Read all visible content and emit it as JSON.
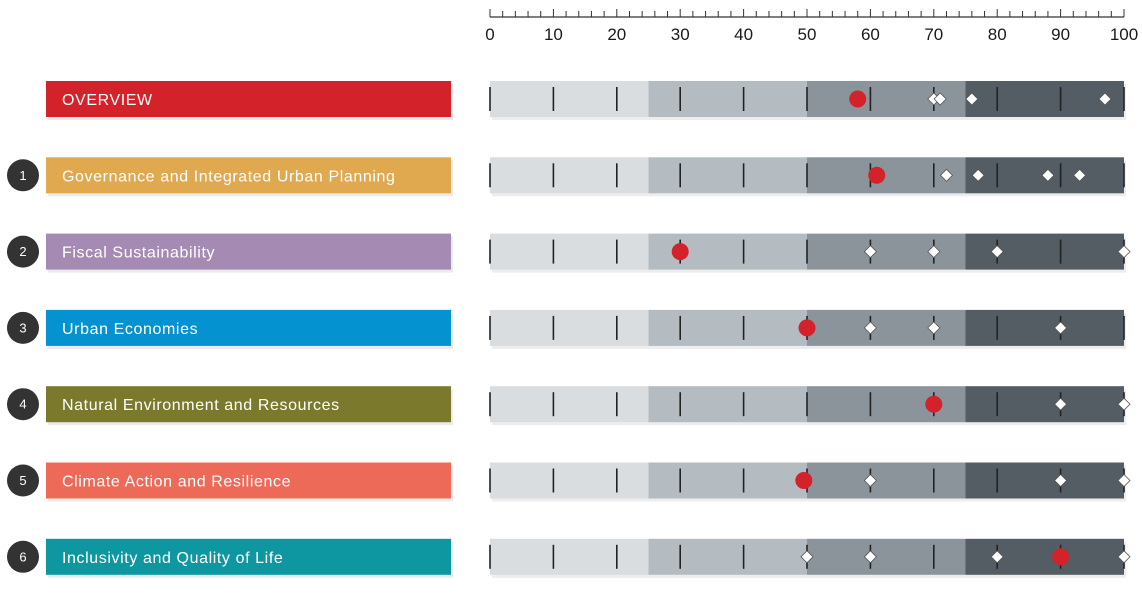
{
  "chart_data": {
    "type": "bullet",
    "xlim": [
      0,
      100
    ],
    "axis_ticks": [
      0,
      10,
      20,
      30,
      40,
      50,
      60,
      70,
      80,
      90,
      100
    ],
    "bands": [
      {
        "from": 0,
        "to": 25,
        "color": "#d9dde0"
      },
      {
        "from": 25,
        "to": 50,
        "color": "#b5bcc1"
      },
      {
        "from": 50,
        "to": 75,
        "color": "#8a949a"
      },
      {
        "from": 75,
        "to": 100,
        "color": "#545d63"
      }
    ],
    "legend": [],
    "rows": [
      {
        "number": "",
        "label": "OVERVIEW",
        "color": "#d3222a",
        "score": 58,
        "benchmarks": [
          70,
          71,
          76,
          97
        ]
      },
      {
        "number": "1",
        "label": "Governance and Integrated Urban Planning",
        "color": "#e0a84f",
        "score": 61,
        "benchmarks": [
          72,
          77,
          88,
          93
        ]
      },
      {
        "number": "2",
        "label": "Fiscal Sustainability",
        "color": "#a58bb3",
        "score": 30,
        "benchmarks": [
          60,
          70,
          80,
          100
        ]
      },
      {
        "number": "3",
        "label": "Urban Economies",
        "color": "#0592d0",
        "score": 50,
        "benchmarks": [
          60,
          70,
          90
        ]
      },
      {
        "number": "4",
        "label": "Natural Environment and Resources",
        "color": "#7b7a2c",
        "score": 70,
        "benchmarks": [
          90,
          100
        ]
      },
      {
        "number": "5",
        "label": "Climate Action and Resilience",
        "color": "#ee6a58",
        "score": 49.5,
        "benchmarks": [
          60,
          90,
          100
        ]
      },
      {
        "number": "6",
        "label": "Inclusivity and Quality of Life",
        "color": "#0e96a1",
        "score": 90,
        "benchmarks": [
          50,
          60,
          80,
          100
        ]
      }
    ]
  },
  "colors": {
    "score_marker": "#d3222a",
    "benchmark_marker": "#ffffff",
    "benchmark_stroke": "#555555",
    "badge": "#333333"
  }
}
